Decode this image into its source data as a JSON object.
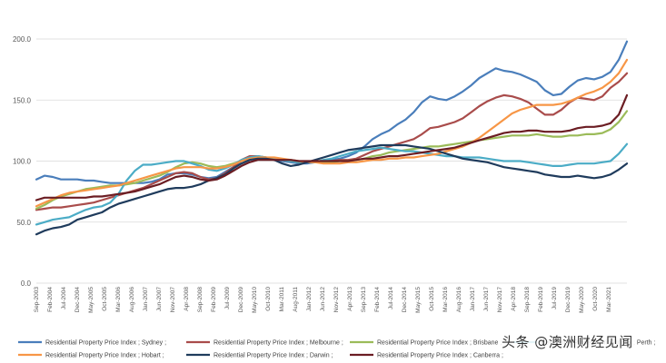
{
  "chart_data": {
    "type": "line",
    "title": "",
    "xlabel": "",
    "ylabel": "",
    "ylim": [
      0,
      200
    ],
    "y_ticks": [
      "0.0",
      "50.0",
      "100.0",
      "150.0",
      "200.0"
    ],
    "grid": true,
    "legend_position": "bottom",
    "x_tick_labels": [
      "Sep-2003",
      "Feb-2004",
      "Jul-2004",
      "Dec-2004",
      "May-2005",
      "Oct-2005",
      "Mar-2006",
      "Aug-2006",
      "Jan-2007",
      "Jun-2007",
      "Nov-2007",
      "Apr-2008",
      "Sep-2008",
      "Feb-2009",
      "Jul-2009",
      "Dec-2009",
      "May-2010",
      "Oct-2010",
      "Mar-2011",
      "Aug-2011",
      "Jan-2012",
      "Jun-2012",
      "Nov-2012",
      "Apr-2013",
      "Sep-2013",
      "Feb-2014",
      "Jul-2014",
      "Dec-2014",
      "May-2015",
      "Oct-2015",
      "Mar-2016",
      "Aug-2016",
      "Jan-2017",
      "Jun-2017",
      "Nov-2017",
      "Apr-2018",
      "Sep-2018",
      "Feb-2019",
      "Jul-2019",
      "Dec-2019",
      "May-2020",
      "Oct-2020",
      "Mar-2021"
    ],
    "x": [
      "Sep-2003",
      "Dec-2003",
      "Mar-2004",
      "Jun-2004",
      "Sep-2004",
      "Dec-2004",
      "Mar-2005",
      "Jun-2005",
      "Sep-2005",
      "Dec-2005",
      "Mar-2006",
      "Jun-2006",
      "Sep-2006",
      "Dec-2006",
      "Mar-2007",
      "Jun-2007",
      "Sep-2007",
      "Dec-2007",
      "Mar-2008",
      "Jun-2008",
      "Sep-2008",
      "Dec-2008",
      "Mar-2009",
      "Jun-2009",
      "Sep-2009",
      "Dec-2009",
      "Mar-2010",
      "Jun-2010",
      "Sep-2010",
      "Dec-2010",
      "Mar-2011",
      "Jun-2011",
      "Sep-2011",
      "Dec-2011",
      "Mar-2012",
      "Jun-2012",
      "Sep-2012",
      "Dec-2012",
      "Mar-2013",
      "Jun-2013",
      "Sep-2013",
      "Dec-2013",
      "Mar-2014",
      "Jun-2014",
      "Sep-2014",
      "Dec-2014",
      "Mar-2015",
      "Jun-2015",
      "Sep-2015",
      "Dec-2015",
      "Mar-2016",
      "Jun-2016",
      "Sep-2016",
      "Dec-2016",
      "Mar-2017",
      "Jun-2017",
      "Sep-2017",
      "Dec-2017",
      "Mar-2018",
      "Jun-2018",
      "Sep-2018",
      "Dec-2018",
      "Mar-2019",
      "Jun-2019",
      "Sep-2019",
      "Dec-2019",
      "Mar-2020",
      "Jun-2020",
      "Sep-2020",
      "Dec-2020",
      "Mar-2021",
      "Jun-2021",
      "Sep-2021"
    ],
    "series": [
      {
        "name": "Residential Property Price Index ; Sydney ;",
        "color": "#4a7ebb",
        "values": [
          85,
          88,
          87,
          85,
          85,
          85,
          84,
          84,
          83,
          82,
          82,
          82,
          82,
          82,
          83,
          85,
          89,
          90,
          90,
          89,
          87,
          86,
          87,
          91,
          95,
          100,
          103,
          103,
          102,
          101,
          100,
          99,
          98,
          98,
          99,
          100,
          101,
          102,
          104,
          107,
          112,
          118,
          122,
          125,
          130,
          134,
          140,
          148,
          153,
          151,
          150,
          153,
          157,
          162,
          168,
          172,
          176,
          174,
          173,
          171,
          168,
          165,
          158,
          154,
          155,
          161,
          166,
          168,
          167,
          169,
          173,
          183,
          198
        ]
      },
      {
        "name": "Residential Property Price Index ; Melbourne ;",
        "color": "#a94c4b",
        "values": [
          60,
          61,
          62,
          62,
          63,
          64,
          65,
          66,
          68,
          70,
          72,
          74,
          76,
          78,
          81,
          84,
          87,
          90,
          91,
          90,
          87,
          85,
          86,
          90,
          95,
          101,
          104,
          104,
          103,
          102,
          101,
          100,
          99,
          99,
          99,
          100,
          100,
          101,
          101,
          102,
          105,
          108,
          110,
          112,
          114,
          116,
          118,
          122,
          127,
          128,
          130,
          132,
          135,
          140,
          145,
          149,
          152,
          154,
          153,
          151,
          148,
          143,
          138,
          138,
          142,
          148,
          152,
          151,
          150,
          153,
          160,
          165,
          172
        ]
      },
      {
        "name": "Residential Property Price Index ; Brisbane ;",
        "color": "#9bbb59",
        "values": [
          61,
          64,
          68,
          71,
          73,
          75,
          77,
          78,
          79,
          80,
          80,
          81,
          82,
          84,
          86,
          88,
          91,
          95,
          98,
          99,
          98,
          96,
          95,
          96,
          98,
          100,
          102,
          103,
          103,
          102,
          101,
          100,
          99,
          99,
          99,
          99,
          99,
          100,
          100,
          101,
          102,
          104,
          105,
          107,
          108,
          109,
          110,
          111,
          112,
          112,
          113,
          114,
          115,
          116,
          117,
          118,
          119,
          120,
          121,
          121,
          121,
          122,
          121,
          120,
          120,
          121,
          121,
          122,
          122,
          123,
          126,
          132,
          141
        ]
      },
      {
        "name": "Residential Property Price Index ; Perth ;",
        "color": "#4bacc6",
        "values": [
          48,
          50,
          52,
          53,
          54,
          57,
          60,
          62,
          63,
          66,
          73,
          84,
          92,
          97,
          97,
          98,
          99,
          100,
          100,
          98,
          96,
          93,
          92,
          94,
          97,
          101,
          103,
          104,
          103,
          102,
          101,
          100,
          99,
          99,
          99,
          101,
          102,
          104,
          106,
          108,
          109,
          110,
          111,
          110,
          109,
          108,
          108,
          107,
          106,
          105,
          104,
          104,
          103,
          103,
          103,
          102,
          101,
          100,
          100,
          100,
          99,
          98,
          97,
          96,
          96,
          97,
          98,
          98,
          98,
          99,
          100,
          106,
          114
        ]
      },
      {
        "name": "Residential Property Price Index ; Hobart ;",
        "color": "#f79646",
        "values": [
          63,
          66,
          69,
          72,
          74,
          75,
          76,
          77,
          78,
          79,
          80,
          82,
          84,
          86,
          88,
          90,
          92,
          94,
          95,
          95,
          95,
          94,
          94,
          95,
          97,
          100,
          102,
          103,
          103,
          103,
          102,
          101,
          100,
          99,
          99,
          98,
          98,
          98,
          99,
          99,
          100,
          101,
          101,
          102,
          102,
          103,
          103,
          104,
          105,
          106,
          108,
          110,
          112,
          115,
          119,
          124,
          129,
          134,
          139,
          142,
          144,
          146,
          146,
          146,
          147,
          149,
          152,
          155,
          157,
          160,
          165,
          172,
          183
        ]
      },
      {
        "name": "Residential Property Price Index ; Darwin ;",
        "color": "#1f3b5c",
        "values": [
          40,
          43,
          45,
          46,
          48,
          52,
          54,
          56,
          58,
          62,
          65,
          67,
          69,
          71,
          73,
          75,
          77,
          78,
          78,
          79,
          81,
          84,
          86,
          89,
          94,
          98,
          101,
          102,
          102,
          101,
          98,
          96,
          97,
          99,
          101,
          103,
          105,
          107,
          109,
          110,
          111,
          112,
          113,
          113,
          113,
          113,
          112,
          111,
          110,
          108,
          106,
          104,
          102,
          101,
          100,
          99,
          97,
          95,
          94,
          93,
          92,
          91,
          89,
          88,
          87,
          87,
          88,
          87,
          86,
          87,
          89,
          93,
          98
        ]
      },
      {
        "name": "Residential Property Price Index ; Canberra ;",
        "color": "#6b1d23",
        "values": [
          68,
          70,
          70,
          70,
          70,
          70,
          70,
          71,
          71,
          72,
          73,
          74,
          75,
          77,
          79,
          81,
          84,
          87,
          88,
          87,
          85,
          84,
          85,
          88,
          92,
          96,
          99,
          101,
          101,
          101,
          101,
          101,
          100,
          100,
          100,
          100,
          100,
          100,
          100,
          101,
          102,
          102,
          103,
          104,
          104,
          105,
          106,
          107,
          108,
          109,
          110,
          111,
          113,
          115,
          117,
          119,
          121,
          123,
          124,
          124,
          125,
          125,
          124,
          124,
          124,
          125,
          127,
          128,
          128,
          129,
          131,
          138,
          154
        ]
      }
    ]
  },
  "watermark": "头条 @澳洲财经见闻"
}
